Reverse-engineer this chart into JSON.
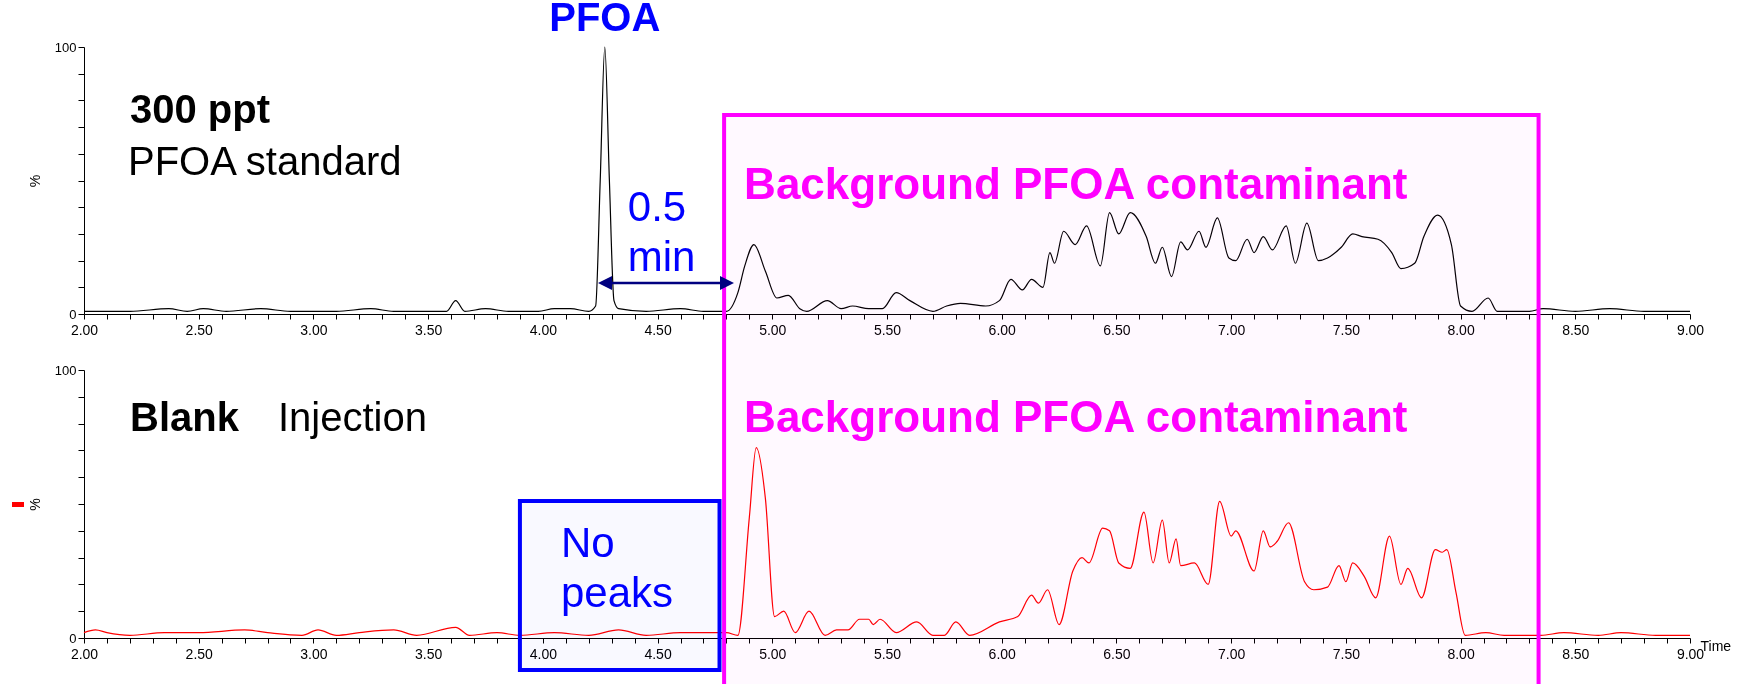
{
  "chart_data": [
    {
      "type": "line",
      "ylabel": "%",
      "xlim": [
        2,
        9
      ],
      "ylim": [
        0,
        100
      ],
      "xticks": [
        {
          "value": 2,
          "label": "2.00"
        },
        {
          "value": 2.1,
          "label": null
        },
        {
          "value": 2.2,
          "label": null
        },
        {
          "value": 2.3,
          "label": null
        },
        {
          "value": 2.4,
          "label": null
        },
        {
          "value": 2.5,
          "label": "2.50"
        },
        {
          "value": 2.6,
          "label": null
        },
        {
          "value": 2.7,
          "label": null
        },
        {
          "value": 2.8,
          "label": null
        },
        {
          "value": 2.9,
          "label": null
        },
        {
          "value": 3,
          "label": "3.00"
        },
        {
          "value": 3.1,
          "label": null
        },
        {
          "value": 3.2,
          "label": null
        },
        {
          "value": 3.3,
          "label": null
        },
        {
          "value": 3.4,
          "label": null
        },
        {
          "value": 3.5,
          "label": "3.50"
        },
        {
          "value": 3.6,
          "label": null
        },
        {
          "value": 3.7,
          "label": null
        },
        {
          "value": 3.8,
          "label": null
        },
        {
          "value": 3.9,
          "label": null
        },
        {
          "value": 4,
          "label": "4.00"
        },
        {
          "value": 4.1,
          "label": null
        },
        {
          "value": 4.2,
          "label": null
        },
        {
          "value": 4.3,
          "label": null
        },
        {
          "value": 4.4,
          "label": null
        },
        {
          "value": 4.5,
          "label": "4.50"
        },
        {
          "value": 4.6,
          "label": null
        },
        {
          "value": 4.7,
          "label": null
        },
        {
          "value": 4.8,
          "label": null
        },
        {
          "value": 4.9,
          "label": null
        },
        {
          "value": 5,
          "label": "5.00"
        },
        {
          "value": 5.1,
          "label": null
        },
        {
          "value": 5.2,
          "label": null
        },
        {
          "value": 5.3,
          "label": null
        },
        {
          "value": 5.4,
          "label": null
        },
        {
          "value": 5.5,
          "label": "5.50"
        },
        {
          "value": 5.6,
          "label": null
        },
        {
          "value": 5.7,
          "label": null
        },
        {
          "value": 5.8,
          "label": null
        },
        {
          "value": 5.9,
          "label": null
        },
        {
          "value": 6,
          "label": "6.00"
        },
        {
          "value": 6.1,
          "label": null
        },
        {
          "value": 6.2,
          "label": null
        },
        {
          "value": 6.3,
          "label": null
        },
        {
          "value": 6.4,
          "label": null
        },
        {
          "value": 6.5,
          "label": "6.50"
        },
        {
          "value": 6.6,
          "label": null
        },
        {
          "value": 6.7,
          "label": null
        },
        {
          "value": 6.8,
          "label": null
        },
        {
          "value": 6.9,
          "label": null
        },
        {
          "value": 7,
          "label": "7.00"
        },
        {
          "value": 7.1,
          "label": null
        },
        {
          "value": 7.2,
          "label": null
        },
        {
          "value": 7.3,
          "label": null
        },
        {
          "value": 7.4,
          "label": null
        },
        {
          "value": 7.5,
          "label": "7.50"
        },
        {
          "value": 7.6,
          "label": null
        },
        {
          "value": 7.7,
          "label": null
        },
        {
          "value": 7.8,
          "label": null
        },
        {
          "value": 7.9,
          "label": null
        },
        {
          "value": 8,
          "label": "8.00"
        },
        {
          "value": 8.1,
          "label": null
        },
        {
          "value": 8.2,
          "label": null
        },
        {
          "value": 8.3,
          "label": null
        },
        {
          "value": 8.4,
          "label": null
        },
        {
          "value": 8.5,
          "label": "8.50"
        },
        {
          "value": 8.6,
          "label": null
        },
        {
          "value": 8.7,
          "label": null
        },
        {
          "value": 8.8,
          "label": null
        },
        {
          "value": 8.9,
          "label": null
        },
        {
          "value": 9,
          "label": "9.00"
        }
      ],
      "yticks": [
        {
          "value": 0,
          "label": "0"
        },
        {
          "value": 10,
          "label": null
        },
        {
          "value": 20,
          "label": null
        },
        {
          "value": 30,
          "label": null
        },
        {
          "value": 40,
          "label": null
        },
        {
          "value": 50,
          "label": null
        },
        {
          "value": 60,
          "label": null
        },
        {
          "value": 70,
          "label": null
        },
        {
          "value": 80,
          "label": null
        },
        {
          "value": 90,
          "label": null
        },
        {
          "value": 100,
          "label": "100"
        }
      ],
      "x": [
        2,
        2.2,
        2.37,
        2.45,
        2.52,
        2.62,
        2.77,
        2.9,
        3.1,
        3.25,
        3.35,
        3.5,
        3.58,
        3.62,
        3.66,
        3.75,
        3.85,
        3.98,
        4.05,
        4.12,
        4.2,
        4.23,
        4.25,
        4.27,
        4.29,
        4.31,
        4.33,
        4.45,
        4.6,
        4.7,
        4.8,
        4.85,
        4.88,
        4.92,
        4.97,
        5.02,
        5.07,
        5.12,
        5.15,
        5.24,
        5.3,
        5.35,
        5.42,
        5.48,
        5.54,
        5.6,
        5.7,
        5.76,
        5.82,
        5.93,
        5.99,
        6.04,
        6.09,
        6.13,
        6.18,
        6.21,
        6.23,
        6.27,
        6.32,
        6.37,
        6.43,
        6.47,
        6.51,
        6.56,
        6.63,
        6.67,
        6.7,
        6.74,
        6.78,
        6.81,
        6.86,
        6.89,
        6.94,
        6.99,
        7.02,
        7.07,
        7.1,
        7.14,
        7.18,
        7.24,
        7.28,
        7.33,
        7.38,
        7.42,
        7.48,
        7.53,
        7.57,
        7.64,
        7.7,
        7.74,
        7.8,
        7.84,
        7.9,
        7.96,
        8,
        8.05,
        8.12,
        8.16,
        8.3,
        8.36,
        8.5,
        8.65,
        8.8,
        9
      ],
      "series": [
        {
          "color": "#000000",
          "values": [
            1,
            1,
            2,
            1,
            2,
            1,
            2,
            1,
            1,
            2,
            1,
            1,
            1,
            5,
            1,
            2,
            1,
            1,
            2,
            2,
            1,
            3,
            50,
            100,
            50,
            5,
            2,
            1,
            2,
            1,
            1,
            8,
            18,
            26,
            16,
            6,
            7,
            2,
            1,
            5,
            2,
            3,
            2,
            2,
            8,
            5,
            1,
            3,
            4,
            3,
            5,
            13,
            9,
            13,
            10,
            23,
            19,
            31,
            26,
            33,
            18,
            38,
            30,
            38,
            29,
            19,
            25,
            14,
            27,
            24,
            31,
            25,
            36,
            21,
            20,
            28,
            23,
            29,
            24,
            33,
            19,
            34,
            20,
            21,
            25,
            30,
            29,
            28,
            23,
            17,
            19,
            29,
            37,
            26,
            3,
            1,
            6,
            1,
            1,
            2,
            1,
            2,
            1,
            1
          ]
        }
      ],
      "annotations": [
        {
          "text": "PFOA",
          "x": 4.27,
          "y": 100
        },
        "300 ppt",
        "PFOA standard",
        {
          "text": "0.5 min",
          "x": 4.27,
          "y": 12
        }
      ],
      "bands": [
        {
          "axis": "x",
          "from": 4.79,
          "to": 8.34,
          "label": "Background PFOA contaminant",
          "color": "#ff00ff"
        }
      ]
    },
    {
      "type": "line",
      "ylabel": "%",
      "xlabel": "Time",
      "xlim": [
        2,
        9
      ],
      "ylim": [
        0,
        100
      ],
      "xticks": [
        {
          "value": 2,
          "label": "2.00"
        },
        {
          "value": 2.1,
          "label": null
        },
        {
          "value": 2.2,
          "label": null
        },
        {
          "value": 2.3,
          "label": null
        },
        {
          "value": 2.4,
          "label": null
        },
        {
          "value": 2.5,
          "label": "2.50"
        },
        {
          "value": 2.6,
          "label": null
        },
        {
          "value": 2.7,
          "label": null
        },
        {
          "value": 2.8,
          "label": null
        },
        {
          "value": 2.9,
          "label": null
        },
        {
          "value": 3,
          "label": "3.00"
        },
        {
          "value": 3.1,
          "label": null
        },
        {
          "value": 3.2,
          "label": null
        },
        {
          "value": 3.3,
          "label": null
        },
        {
          "value": 3.4,
          "label": null
        },
        {
          "value": 3.5,
          "label": "3.50"
        },
        {
          "value": 3.6,
          "label": null
        },
        {
          "value": 3.7,
          "label": null
        },
        {
          "value": 3.8,
          "label": null
        },
        {
          "value": 3.9,
          "label": null
        },
        {
          "value": 4,
          "label": "4.00"
        },
        {
          "value": 4.1,
          "label": null
        },
        {
          "value": 4.2,
          "label": null
        },
        {
          "value": 4.3,
          "label": null
        },
        {
          "value": 4.4,
          "label": null
        },
        {
          "value": 4.5,
          "label": "4.50"
        },
        {
          "value": 4.6,
          "label": null
        },
        {
          "value": 4.7,
          "label": null
        },
        {
          "value": 4.8,
          "label": null
        },
        {
          "value": 4.9,
          "label": null
        },
        {
          "value": 5,
          "label": "5.00"
        },
        {
          "value": 5.1,
          "label": null
        },
        {
          "value": 5.2,
          "label": null
        },
        {
          "value": 5.3,
          "label": null
        },
        {
          "value": 5.4,
          "label": null
        },
        {
          "value": 5.5,
          "label": "5.50"
        },
        {
          "value": 5.6,
          "label": null
        },
        {
          "value": 5.7,
          "label": null
        },
        {
          "value": 5.8,
          "label": null
        },
        {
          "value": 5.9,
          "label": null
        },
        {
          "value": 6,
          "label": "6.00"
        },
        {
          "value": 6.1,
          "label": null
        },
        {
          "value": 6.2,
          "label": null
        },
        {
          "value": 6.3,
          "label": null
        },
        {
          "value": 6.4,
          "label": null
        },
        {
          "value": 6.5,
          "label": "6.50"
        },
        {
          "value": 6.6,
          "label": null
        },
        {
          "value": 6.7,
          "label": null
        },
        {
          "value": 6.8,
          "label": null
        },
        {
          "value": 6.9,
          "label": null
        },
        {
          "value": 7,
          "label": "7.00"
        },
        {
          "value": 7.1,
          "label": null
        },
        {
          "value": 7.2,
          "label": null
        },
        {
          "value": 7.3,
          "label": null
        },
        {
          "value": 7.4,
          "label": null
        },
        {
          "value": 7.5,
          "label": "7.50"
        },
        {
          "value": 7.6,
          "label": null
        },
        {
          "value": 7.7,
          "label": null
        },
        {
          "value": 7.8,
          "label": null
        },
        {
          "value": 7.9,
          "label": null
        },
        {
          "value": 8,
          "label": "8.00"
        },
        {
          "value": 8.1,
          "label": null
        },
        {
          "value": 8.2,
          "label": null
        },
        {
          "value": 8.3,
          "label": null
        },
        {
          "value": 8.4,
          "label": null
        },
        {
          "value": 8.5,
          "label": "8.50"
        },
        {
          "value": 8.6,
          "label": null
        },
        {
          "value": 8.7,
          "label": null
        },
        {
          "value": 8.8,
          "label": null
        },
        {
          "value": 8.9,
          "label": null
        },
        {
          "value": 9,
          "label": "9.00"
        }
      ],
      "yticks": [
        {
          "value": 0,
          "label": "0"
        },
        {
          "value": 10,
          "label": null
        },
        {
          "value": 20,
          "label": null
        },
        {
          "value": 30,
          "label": null
        },
        {
          "value": 40,
          "label": null
        },
        {
          "value": 50,
          "label": null
        },
        {
          "value": 60,
          "label": null
        },
        {
          "value": 70,
          "label": null
        },
        {
          "value": 80,
          "label": null
        },
        {
          "value": 90,
          "label": null
        },
        {
          "value": 100,
          "label": "100"
        }
      ],
      "x": [
        2,
        2.05,
        2.1,
        2.2,
        2.35,
        2.5,
        2.7,
        2.8,
        2.95,
        3.02,
        3.1,
        3.2,
        3.35,
        3.45,
        3.62,
        3.68,
        3.8,
        3.9,
        4.05,
        4.2,
        4.33,
        4.45,
        4.6,
        4.8,
        4.85,
        4.9,
        4.93,
        4.97,
        5.01,
        5.05,
        5.1,
        5.16,
        5.23,
        5.28,
        5.33,
        5.38,
        5.42,
        5.44,
        5.47,
        5.54,
        5.63,
        5.7,
        5.75,
        5.8,
        5.86,
        5.99,
        6.07,
        6.13,
        6.16,
        6.2,
        6.25,
        6.31,
        6.35,
        6.38,
        6.44,
        6.47,
        6.51,
        6.56,
        6.62,
        6.66,
        6.7,
        6.73,
        6.76,
        6.78,
        6.84,
        6.9,
        6.95,
        7,
        7.02,
        7.1,
        7.14,
        7.17,
        7.2,
        7.25,
        7.32,
        7.36,
        7.42,
        7.47,
        7.5,
        7.53,
        7.58,
        7.63,
        7.69,
        7.74,
        7.77,
        7.83,
        7.89,
        7.92,
        7.94,
        7.98,
        8.02,
        8.11,
        8.19,
        8.35,
        8.45,
        8.6,
        8.7,
        8.85,
        9
      ],
      "series": [
        {
          "color": "#ff0000",
          "values": [
            2,
            3,
            2,
            1,
            2,
            2,
            3,
            2,
            1,
            3,
            1,
            2,
            3,
            1,
            4,
            1,
            2,
            1,
            2,
            1,
            3,
            1,
            2,
            2,
            1,
            45,
            71,
            52,
            8,
            10,
            2,
            10,
            1,
            3,
            3,
            7,
            7,
            5,
            7,
            2,
            6,
            1,
            1,
            6,
            1,
            6,
            8,
            16,
            13,
            18,
            5,
            25,
            30,
            28,
            41,
            40,
            28,
            26,
            47,
            28,
            44,
            28,
            37,
            27,
            28,
            20,
            51,
            38,
            40,
            25,
            40,
            34,
            36,
            43,
            21,
            18,
            19,
            27,
            21,
            28,
            23,
            15,
            38,
            20,
            26,
            15,
            33,
            32,
            33,
            17,
            1,
            2,
            1,
            1,
            2,
            1,
            2,
            1,
            1
          ]
        }
      ],
      "annotations": [
        "Blank",
        "Injection"
      ],
      "bands": [
        {
          "axis": "x",
          "from": 4.79,
          "to": 8.34,
          "label": "Background PFOA contaminant",
          "color": "#ff00ff"
        },
        {
          "axis": "x",
          "from": 3.9,
          "to": 4.77,
          "label": "No peaks",
          "color": "#0000ff"
        }
      ]
    }
  ]
}
